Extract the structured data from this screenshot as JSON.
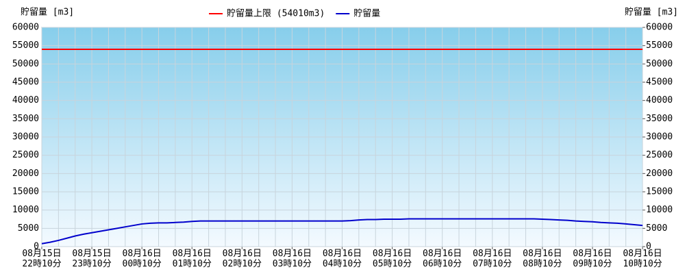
{
  "chart_data": {
    "type": "line",
    "y_label": "貯留量 [m3]",
    "y2_label": "貯留量 [m3]",
    "ylim": [
      0,
      60000
    ],
    "yticks": [
      0,
      5000,
      10000,
      15000,
      20000,
      25000,
      30000,
      35000,
      40000,
      45000,
      50000,
      55000,
      60000
    ],
    "y2lim": [
      0,
      60000
    ],
    "y2ticks": [
      0,
      5000,
      10000,
      15000,
      20000,
      25000,
      30000,
      35000,
      40000,
      45000,
      50000,
      55000,
      60000
    ],
    "grid": true,
    "legend": "top",
    "limit": {
      "name": "貯留量上限 (54010m3)",
      "value": 54010,
      "color": "#ff0000"
    },
    "categories": [
      "08月15日\n22時10分",
      null,
      null,
      null,
      null,
      null,
      "08月15日\n23時10分",
      null,
      null,
      null,
      null,
      null,
      "08月16日\n00時10分",
      null,
      null,
      null,
      null,
      null,
      "08月16日\n01時10分",
      null,
      null,
      null,
      null,
      null,
      "08月16日\n02時10分",
      null,
      null,
      null,
      null,
      null,
      "08月16日\n03時10分",
      null,
      null,
      null,
      null,
      null,
      "08月16日\n04時10分",
      null,
      null,
      null,
      null,
      null,
      "08月16日\n05時10分",
      null,
      null,
      null,
      null,
      null,
      "08月16日\n06時10分",
      null,
      null,
      null,
      null,
      null,
      "08月16日\n07時10分",
      null,
      null,
      null,
      null,
      null,
      "08月16日\n08時10分",
      null,
      null,
      null,
      null,
      null,
      "08月16日\n09時10分",
      null,
      null,
      null,
      null,
      null,
      "08月16日\n10時10分"
    ],
    "series": [
      {
        "name": "貯留量",
        "color": "#0000cc",
        "values": [
          800,
          1200,
          1700,
          2300,
          2900,
          3400,
          3800,
          4200,
          4600,
          5000,
          5400,
          5800,
          6200,
          6400,
          6500,
          6500,
          6600,
          6700,
          6900,
          7000,
          7000,
          7000,
          7000,
          7000,
          7000,
          7000,
          7000,
          7000,
          7000,
          7000,
          7000,
          7000,
          7000,
          7000,
          7000,
          7000,
          7000,
          7100,
          7300,
          7400,
          7400,
          7500,
          7500,
          7500,
          7600,
          7600,
          7600,
          7600,
          7600,
          7600,
          7600,
          7600,
          7600,
          7600,
          7600,
          7600,
          7600,
          7600,
          7600,
          7600,
          7500,
          7400,
          7300,
          7200,
          7000,
          6900,
          6800,
          6600,
          6500,
          6400,
          6200,
          6000,
          5800
        ]
      }
    ]
  }
}
